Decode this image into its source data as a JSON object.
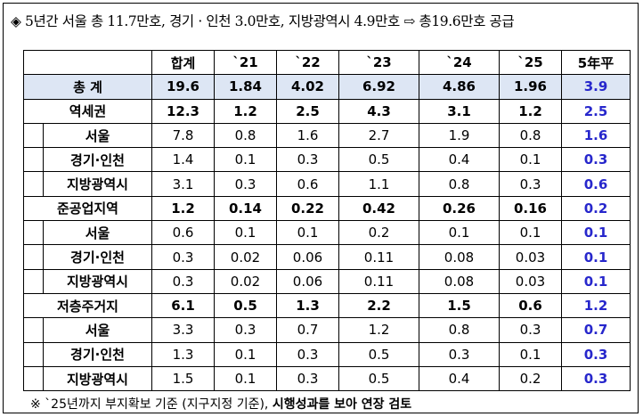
{
  "headline": "◈ 5년간 서울 총 11.7만호, 경기 · 인천 3.0만호, 지방광역시 4.9만호 ⇨ 총19.6만호 공급",
  "columns": [
    "합계",
    "`21",
    "`22",
    "`23",
    "`24",
    "`25",
    "5年平"
  ],
  "rows": [
    {
      "label": "총 계",
      "level": 0,
      "values": [
        "19.6",
        "1.84",
        "4.02",
        "6.92",
        "4.86",
        "1.96"
      ],
      "avg": "3.9"
    },
    {
      "label": "역세권",
      "level": 1,
      "values": [
        "12.3",
        "1.2",
        "2.5",
        "4.3",
        "3.1",
        "1.2"
      ],
      "avg": "2.5"
    },
    {
      "label": "서울",
      "level": 2,
      "values": [
        "7.8",
        "0.8",
        "1.6",
        "2.7",
        "1.9",
        "0.8"
      ],
      "avg": "1.6"
    },
    {
      "label": "경기·인천",
      "level": 2,
      "values": [
        "1.4",
        "0.1",
        "0.3",
        "0.5",
        "0.4",
        "0.1"
      ],
      "avg": "0.3"
    },
    {
      "label": "지방광역시",
      "level": 2,
      "values": [
        "3.1",
        "0.3",
        "0.6",
        "1.1",
        "0.8",
        "0.3"
      ],
      "avg": "0.6"
    },
    {
      "label": "준공업지역",
      "level": 1,
      "values": [
        "1.2",
        "0.14",
        "0.22",
        "0.42",
        "0.26",
        "0.16"
      ],
      "avg": "0.2"
    },
    {
      "label": "서울",
      "level": 2,
      "values": [
        "0.6",
        "0.1",
        "0.1",
        "0.2",
        "0.1",
        "0.1"
      ],
      "avg": "0.1"
    },
    {
      "label": "경기·인천",
      "level": 2,
      "values": [
        "0.3",
        "0.02",
        "0.06",
        "0.11",
        "0.08",
        "0.03"
      ],
      "avg": "0.1"
    },
    {
      "label": "지방광역시",
      "level": 2,
      "values": [
        "0.3",
        "0.02",
        "0.06",
        "0.11",
        "0.08",
        "0.03"
      ],
      "avg": "0.1"
    },
    {
      "label": "저층주거지",
      "level": 1,
      "values": [
        "6.1",
        "0.5",
        "1.3",
        "2.2",
        "1.5",
        "0.6"
      ],
      "avg": "1.2"
    },
    {
      "label": "서울",
      "level": 2,
      "values": [
        "3.3",
        "0.3",
        "0.7",
        "1.2",
        "0.8",
        "0.3"
      ],
      "avg": "0.7"
    },
    {
      "label": "경기·인천",
      "level": 2,
      "values": [
        "1.3",
        "0.1",
        "0.3",
        "0.5",
        "0.3",
        "0.1"
      ],
      "avg": "0.3"
    },
    {
      "label": "지방광역시",
      "level": 2,
      "values": [
        "1.5",
        "0.1",
        "0.3",
        "0.5",
        "0.4",
        "0.2"
      ],
      "avg": "0.3"
    }
  ],
  "colors": {
    "total_row_bg": "#dde6f4",
    "avg_text": "#2727cc"
  },
  "note": {
    "plain": "※ `25년까지 부지확보 기준 (지구지정 기준), ",
    "bold": "시행성과를 보아 연장 검토"
  }
}
